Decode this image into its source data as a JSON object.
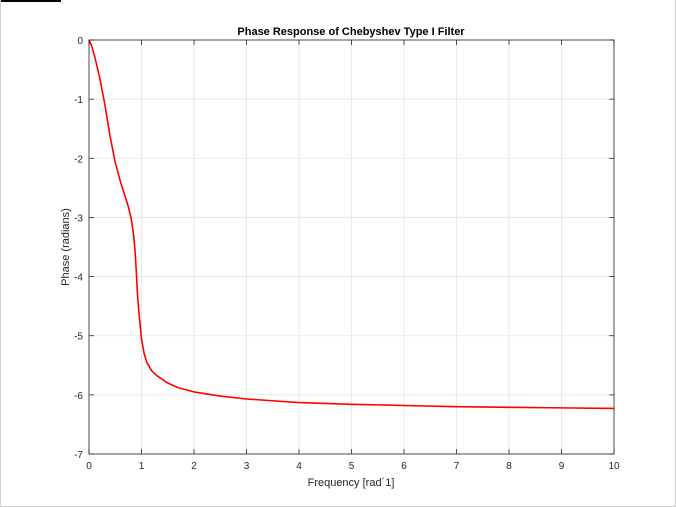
{
  "chart_data": {
    "type": "line",
    "title": "Phase Response of Chebyshev Type I Filter",
    "xlabel": "Frequency  [rad´1]",
    "ylabel": "Phase (radians)",
    "xlim": [
      0,
      10
    ],
    "ylim": [
      -7,
      0
    ],
    "xticks": [
      0,
      1,
      2,
      3,
      4,
      5,
      6,
      7,
      8,
      9,
      10
    ],
    "yticks": [
      0,
      -1,
      -2,
      -3,
      -4,
      -5,
      -6,
      -7
    ],
    "grid": true,
    "series": [
      {
        "color": "#ff0000",
        "x": [
          0,
          0.05,
          0.1,
          0.2,
          0.3,
          0.4,
          0.5,
          0.6,
          0.7,
          0.75,
          0.8,
          0.85,
          0.88,
          0.9,
          0.92,
          0.95,
          1.0,
          1.05,
          1.1,
          1.2,
          1.3,
          1.5,
          1.7,
          2.0,
          2.5,
          3.0,
          4.0,
          5.0,
          6.0,
          7.0,
          8.0,
          9.0,
          10.0
        ],
        "y": [
          0,
          -0.1,
          -0.25,
          -0.62,
          -1.08,
          -1.62,
          -2.07,
          -2.4,
          -2.68,
          -2.82,
          -3.0,
          -3.3,
          -3.6,
          -3.9,
          -4.25,
          -4.6,
          -5.05,
          -5.3,
          -5.45,
          -5.6,
          -5.68,
          -5.8,
          -5.88,
          -5.95,
          -6.02,
          -6.07,
          -6.13,
          -6.16,
          -6.18,
          -6.2,
          -6.21,
          -6.22,
          -6.23
        ]
      }
    ]
  }
}
